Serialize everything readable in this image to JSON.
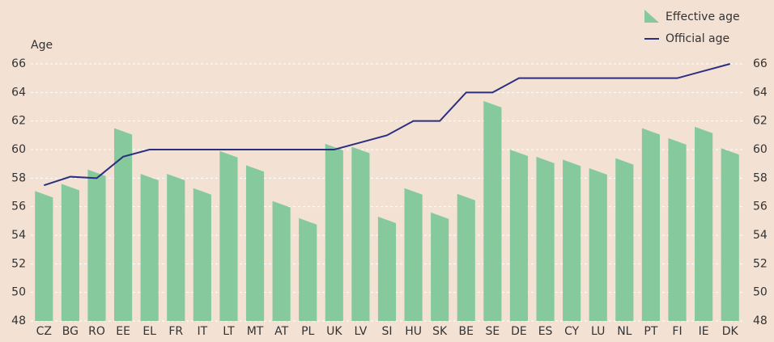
{
  "chart_data": {
    "type": "bar_line",
    "y_label": "Age",
    "categories": [
      "CZ",
      "BG",
      "RO",
      "EE",
      "EL",
      "FR",
      "IT",
      "LT",
      "MT",
      "AT",
      "PL",
      "UK",
      "LV",
      "SI",
      "HU",
      "SK",
      "BE",
      "SE",
      "DE",
      "ES",
      "CY",
      "LU",
      "NL",
      "PT",
      "FI",
      "IE",
      "DK"
    ],
    "series": [
      {
        "name": "Effective age",
        "type": "bar",
        "color": "#86c99d",
        "values": [
          57.1,
          57.6,
          58.6,
          61.5,
          58.3,
          58.3,
          57.3,
          59.9,
          58.9,
          56.4,
          55.2,
          60.4,
          60.2,
          55.3,
          57.3,
          55.6,
          56.9,
          63.4,
          60.0,
          59.5,
          59.3,
          58.7,
          59.4,
          61.5,
          60.8,
          61.6,
          60.1
        ]
      },
      {
        "name": "Official age",
        "type": "line",
        "color": "#2b2f7f",
        "values": [
          57.5,
          58.1,
          58.0,
          59.5,
          60,
          60,
          60,
          60,
          60,
          60,
          60,
          60,
          60.5,
          61,
          62,
          62,
          64,
          64,
          65,
          65,
          65,
          65,
          65,
          65,
          65,
          65.5,
          66
        ]
      }
    ],
    "ylim": [
      48,
      66
    ],
    "yticks": [
      48,
      50,
      52,
      54,
      56,
      58,
      60,
      62,
      64,
      66
    ],
    "y2lim": [
      48,
      66
    ],
    "y2ticks": [
      48,
      50,
      52,
      54,
      56,
      58,
      60,
      62,
      64,
      66
    ],
    "grid": true,
    "legend": "top-right"
  }
}
